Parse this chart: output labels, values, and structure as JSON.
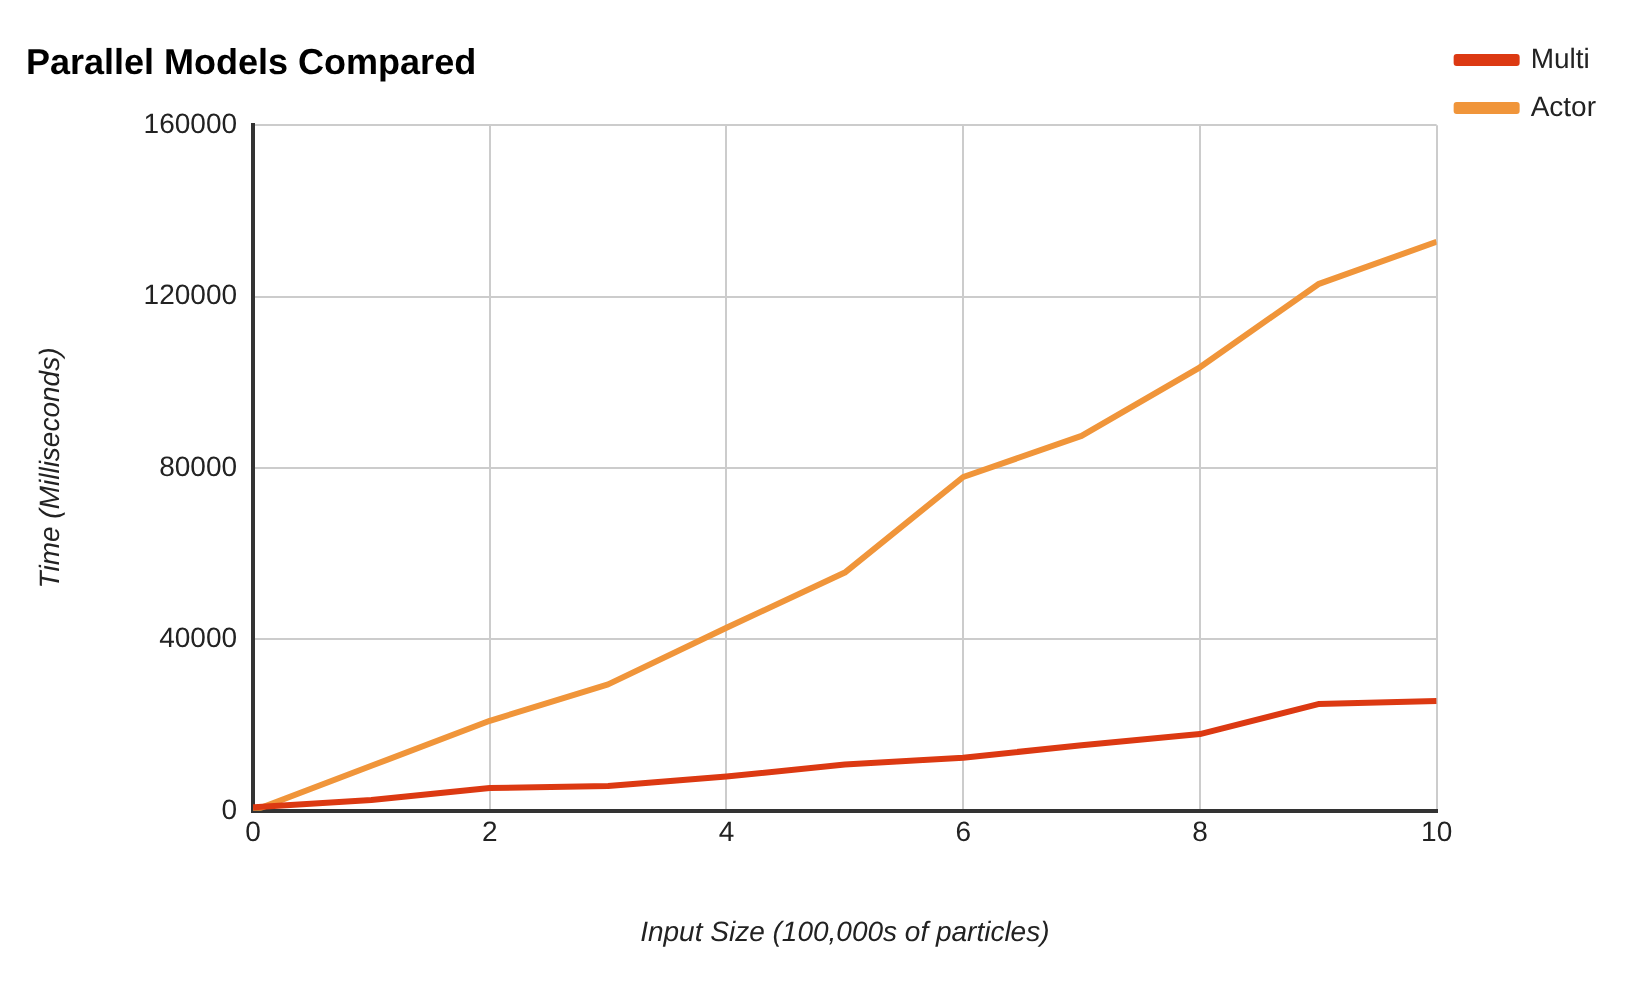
{
  "chart_data": {
    "type": "line",
    "title": "Parallel Models Compared",
    "xlabel": "Input Size (100,000s of particles)",
    "ylabel": "Time (Milliseconds)",
    "x": [
      0,
      1,
      2,
      3,
      4,
      5,
      6,
      7,
      8,
      9,
      10
    ],
    "series": [
      {
        "name": "Multi",
        "color": "#dc3912",
        "values": [
          800,
          2500,
          5300,
          5800,
          8000,
          10800,
          12400,
          15300,
          17900,
          24900,
          25600
        ]
      },
      {
        "name": "Actor",
        "color": "#f0953a",
        "values": [
          0,
          10500,
          21000,
          29500,
          42700,
          55600,
          77900,
          87500,
          103500,
          122900,
          132800
        ]
      }
    ],
    "xlim": [
      0,
      10
    ],
    "xticks": [
      0,
      2,
      4,
      6,
      8,
      10
    ],
    "ylim": [
      0,
      160000
    ],
    "yticks": [
      0,
      40000,
      80000,
      120000,
      160000
    ],
    "grid": true,
    "legend": "top right",
    "marker": "none",
    "line_style": "solid"
  }
}
